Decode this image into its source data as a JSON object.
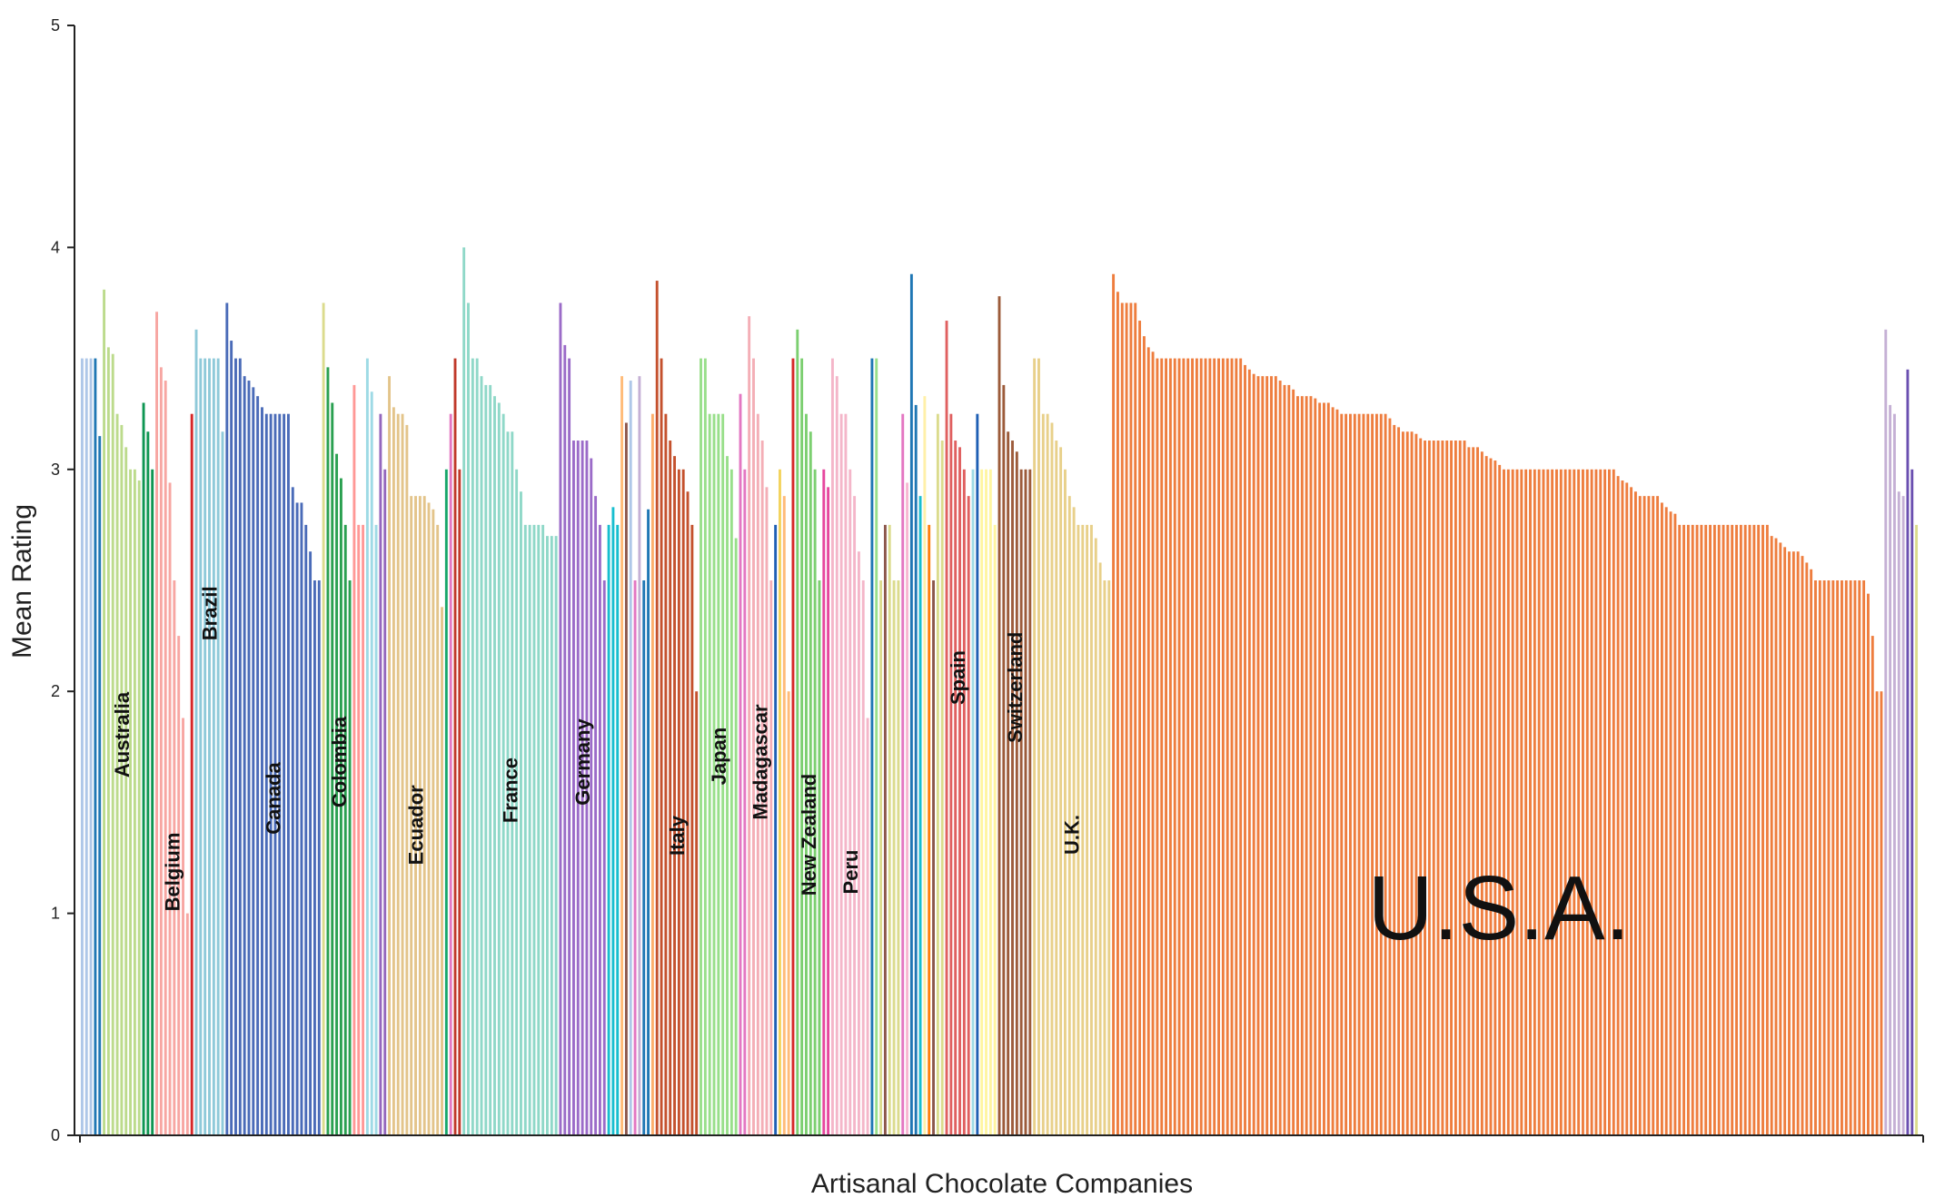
{
  "chart_data": {
    "type": "bar",
    "title": "",
    "xlabel": "Artisanal Chocolate Companies",
    "ylabel": "Mean Rating",
    "ylim": [
      0,
      5
    ],
    "yticks": [
      "0",
      "1",
      "2",
      "3",
      "4",
      "5"
    ],
    "grid": false,
    "highlight_label": "U.S.A.",
    "series": [
      {
        "name": "",
        "color": "#aec7e8",
        "values": [
          3.5,
          3.5,
          3.5
        ]
      },
      {
        "name": "",
        "color": "#1f77b4",
        "values": [
          3.5,
          3.15
        ]
      },
      {
        "name": "Australia",
        "color": "#bcdb8c",
        "values": [
          3.81,
          3.55,
          3.52,
          3.25,
          3.2,
          3.1,
          3.0,
          3.0,
          2.95
        ]
      },
      {
        "name": "",
        "color": "#0e9652",
        "values": [
          3.3,
          3.17,
          3.0
        ]
      },
      {
        "name": "Belgium",
        "color": "#f7a6a2",
        "values": [
          3.71,
          3.46,
          3.4,
          2.94,
          2.5,
          2.25,
          1.88,
          1.0
        ]
      },
      {
        "name": "",
        "color": "#d62728",
        "values": [
          3.25
        ]
      },
      {
        "name": "Brazil",
        "color": "#8ec9d9",
        "values": [
          3.63,
          3.5,
          3.5,
          3.5,
          3.5,
          3.5,
          3.17
        ]
      },
      {
        "name": "Canada",
        "color": "#4a6bb8",
        "values": [
          3.75,
          3.58,
          3.5,
          3.5,
          3.42,
          3.4,
          3.37,
          3.33,
          3.28,
          3.25,
          3.25,
          3.25,
          3.25,
          3.25,
          3.25,
          2.92,
          2.85,
          2.85,
          2.75,
          2.63,
          2.5,
          2.5
        ]
      },
      {
        "name": "",
        "color": "#dbdb8d",
        "values": [
          3.75
        ]
      },
      {
        "name": "Colombia",
        "color": "#2aa050",
        "values": [
          3.46,
          3.3,
          3.07,
          2.96,
          2.75,
          2.5
        ]
      },
      {
        "name": "",
        "color": "#ff9896",
        "values": [
          3.38,
          2.75,
          2.75
        ]
      },
      {
        "name": "",
        "color": "#9edae5",
        "values": [
          3.5,
          3.35,
          2.75
        ]
      },
      {
        "name": "",
        "color": "#9467bd",
        "values": [
          3.25,
          3.0
        ]
      },
      {
        "name": "Ecuador",
        "color": "#e3c48a",
        "values": [
          3.42,
          3.28,
          3.25,
          3.25,
          3.2,
          2.88,
          2.88,
          2.88,
          2.88,
          2.85,
          2.82,
          2.75,
          2.38
        ]
      },
      {
        "name": "",
        "color": "#17a66a",
        "values": [
          3.0
        ]
      },
      {
        "name": "",
        "color": "#e377c2",
        "values": [
          3.25
        ]
      },
      {
        "name": "",
        "color": "#c0392b",
        "values": [
          3.5,
          3.0
        ]
      },
      {
        "name": "France",
        "color": "#8fd8c8",
        "values": [
          4.0,
          3.75,
          3.5,
          3.5,
          3.42,
          3.38,
          3.38,
          3.33,
          3.3,
          3.25,
          3.17,
          3.17,
          3.0,
          2.9,
          2.75,
          2.75,
          2.75,
          2.75,
          2.75,
          2.7,
          2.7,
          2.7
        ]
      },
      {
        "name": "Germany",
        "color": "#9b6bc8",
        "values": [
          3.75,
          3.56,
          3.5,
          3.13,
          3.13,
          3.13,
          3.13,
          3.05,
          2.88,
          2.75,
          2.5
        ]
      },
      {
        "name": "",
        "color": "#17becf",
        "values": [
          2.75,
          2.83,
          2.75
        ]
      },
      {
        "name": "",
        "color": "#ffbb78",
        "values": [
          3.42
        ]
      },
      {
        "name": "",
        "color": "#8c564b",
        "values": [
          3.21
        ]
      },
      {
        "name": "",
        "color": "#aec7e8",
        "values": [
          3.4
        ]
      },
      {
        "name": "",
        "color": "#e377c2",
        "values": [
          2.5
        ]
      },
      {
        "name": "",
        "color": "#c5b0d5",
        "values": [
          3.42
        ]
      },
      {
        "name": "",
        "color": "#1f77b4",
        "values": [
          2.5,
          2.82
        ]
      },
      {
        "name": "",
        "color": "#fdae6b",
        "values": [
          3.25
        ]
      },
      {
        "name": "Italy",
        "color": "#c4512d",
        "values": [
          3.85,
          3.5,
          3.25,
          3.13,
          3.06,
          3.0,
          3.0,
          2.9,
          2.75,
          2.0
        ]
      },
      {
        "name": "Japan",
        "color": "#98df8a",
        "values": [
          3.5,
          3.5,
          3.25,
          3.25,
          3.25,
          3.25,
          3.06,
          3.0,
          2.69
        ]
      },
      {
        "name": "",
        "color": "#e377c2",
        "values": [
          3.34,
          3.0
        ]
      },
      {
        "name": "Madagascar",
        "color": "#f4aeb6",
        "values": [
          3.69,
          3.5,
          3.25,
          3.13,
          2.92,
          2.5
        ]
      },
      {
        "name": "",
        "color": "#1f5fb4",
        "values": [
          2.75
        ]
      },
      {
        "name": "",
        "color": "#f3d35c",
        "values": [
          3.0
        ]
      },
      {
        "name": "",
        "color": "#ffbb78",
        "values": [
          2.88,
          2.0
        ]
      },
      {
        "name": "",
        "color": "#d62728",
        "values": [
          3.5
        ]
      },
      {
        "name": "New Zealand",
        "color": "#7ccf70",
        "values": [
          3.63,
          3.5,
          3.25,
          3.17,
          3.0,
          2.5
        ]
      },
      {
        "name": "",
        "color": "#e6479e",
        "values": [
          3.0,
          2.92
        ]
      },
      {
        "name": "Peru",
        "color": "#f4b6c9",
        "values": [
          3.5,
          3.42,
          3.25,
          3.25,
          3.0,
          2.88,
          2.63,
          2.5,
          1.88
        ]
      },
      {
        "name": "",
        "color": "#1f77b4",
        "values": [
          3.5
        ]
      },
      {
        "name": "",
        "color": "#98df8a",
        "values": [
          3.5
        ]
      },
      {
        "name": "",
        "color": "#dbdb8d",
        "values": [
          2.5
        ]
      },
      {
        "name": "",
        "color": "#8c564b",
        "values": [
          2.75
        ]
      },
      {
        "name": "",
        "color": "#dbdb8d",
        "values": [
          2.75,
          2.5,
          2.5
        ]
      },
      {
        "name": "",
        "color": "#e377c2",
        "values": [
          3.25
        ]
      },
      {
        "name": "",
        "color": "#f7b6d2",
        "values": [
          2.94
        ]
      },
      {
        "name": "",
        "color": "#1f77b4",
        "values": [
          3.88,
          3.29
        ]
      },
      {
        "name": "",
        "color": "#17becf",
        "values": [
          2.88
        ]
      },
      {
        "name": "",
        "color": "#fff0a8",
        "values": [
          3.33
        ]
      },
      {
        "name": "",
        "color": "#ff7f0e",
        "values": [
          2.75
        ]
      },
      {
        "name": "",
        "color": "#8c564b",
        "values": [
          2.5
        ]
      },
      {
        "name": "",
        "color": "#dbdb8d",
        "values": [
          3.25,
          3.13
        ]
      },
      {
        "name": "Spain",
        "color": "#e06060",
        "values": [
          3.67,
          3.25,
          3.13,
          3.1,
          3.0,
          2.88
        ]
      },
      {
        "name": "",
        "color": "#9edae5",
        "values": [
          3.0
        ]
      },
      {
        "name": "",
        "color": "#1f5fb4",
        "values": [
          3.25
        ]
      },
      {
        "name": "",
        "color": "#fff5a0",
        "values": [
          3.0,
          3.0,
          3.0,
          2.75
        ]
      },
      {
        "name": "Switzerland",
        "color": "#9c5b3a",
        "values": [
          3.78,
          3.38,
          3.17,
          3.13,
          3.08,
          3.0,
          3.0,
          3.0
        ]
      },
      {
        "name": "U.K.",
        "color": "#e8d08a",
        "values": [
          3.5,
          3.5,
          3.25,
          3.25,
          3.21,
          3.13,
          3.1,
          3.0,
          2.88,
          2.83,
          2.75,
          2.75,
          2.75,
          2.75,
          2.69,
          2.58,
          2.5,
          2.5
        ]
      },
      {
        "name": "",
        "color": "#ee7d3e",
        "values": [
          3.88,
          3.8,
          3.75,
          3.75,
          3.75,
          3.75,
          3.67,
          3.6,
          3.55,
          3.53,
          3.5,
          3.5,
          3.5,
          3.5,
          3.5,
          3.5,
          3.5,
          3.5,
          3.5,
          3.5,
          3.5,
          3.5,
          3.5,
          3.5,
          3.5,
          3.5,
          3.5,
          3.5,
          3.5,
          3.5,
          3.47,
          3.45,
          3.43,
          3.42,
          3.42,
          3.42,
          3.42,
          3.42,
          3.4,
          3.38,
          3.38,
          3.36,
          3.33,
          3.33,
          3.33,
          3.33,
          3.32,
          3.3,
          3.3,
          3.3,
          3.28,
          3.27,
          3.25,
          3.25,
          3.25,
          3.25,
          3.25,
          3.25,
          3.25,
          3.25,
          3.25,
          3.25,
          3.25,
          3.23,
          3.2,
          3.19,
          3.17,
          3.17,
          3.17,
          3.16,
          3.14,
          3.13,
          3.13,
          3.13,
          3.13,
          3.13,
          3.13,
          3.13,
          3.13,
          3.13,
          3.13,
          3.1,
          3.1,
          3.1,
          3.08,
          3.06,
          3.05,
          3.04,
          3.02,
          3.0,
          3.0,
          3.0,
          3.0,
          3.0,
          3.0,
          3.0,
          3.0,
          3.0,
          3.0,
          3.0,
          3.0,
          3.0,
          3.0,
          3.0,
          3.0,
          3.0,
          3.0,
          3.0,
          3.0,
          3.0,
          3.0,
          3.0,
          3.0,
          3.0,
          3.0,
          2.97,
          2.95,
          2.94,
          2.92,
          2.9,
          2.88,
          2.88,
          2.88,
          2.88,
          2.88,
          2.85,
          2.83,
          2.81,
          2.8,
          2.75,
          2.75,
          2.75,
          2.75,
          2.75,
          2.75,
          2.75,
          2.75,
          2.75,
          2.75,
          2.75,
          2.75,
          2.75,
          2.75,
          2.75,
          2.75,
          2.75,
          2.75,
          2.75,
          2.75,
          2.75,
          2.7,
          2.69,
          2.67,
          2.65,
          2.63,
          2.63,
          2.63,
          2.61,
          2.58,
          2.55,
          2.5,
          2.5,
          2.5,
          2.5,
          2.5,
          2.5,
          2.5,
          2.5,
          2.5,
          2.5,
          2.5,
          2.5,
          2.44,
          2.25,
          2.0,
          2.0
        ]
      },
      {
        "name": "",
        "color": "#c5b0d5",
        "values": [
          3.63,
          3.29,
          3.25,
          2.9,
          2.88
        ]
      },
      {
        "name": "",
        "color": "#6a4fb0",
        "values": [
          3.45,
          3.0
        ]
      },
      {
        "name": "",
        "color": "#dbdb8d",
        "values": [
          2.75
        ]
      }
    ]
  }
}
